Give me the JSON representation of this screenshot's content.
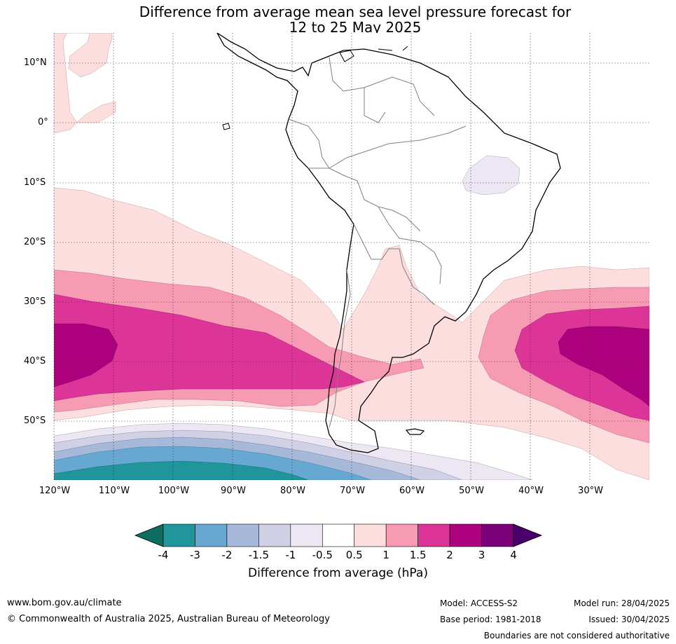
{
  "title": {
    "line1": "Difference from average mean sea level pressure forecast for",
    "line2": "12 to 25 May 2025"
  },
  "map": {
    "lat_labels": [
      "10°N",
      "0°",
      "10°S",
      "20°S",
      "30°S",
      "40°S",
      "50°S"
    ],
    "lon_labels": [
      "120°W",
      "110°W",
      "100°W",
      "90°W",
      "80°W",
      "70°W",
      "60°W",
      "50°W",
      "40°W",
      "30°W"
    ],
    "colors": {
      "land_outline": "#000000",
      "borders": "#808080",
      "grid": "#333333"
    }
  },
  "colorbar": {
    "label": "Difference from average (hPa)",
    "ticks": [
      "-4",
      "-3",
      "-2",
      "-1.5",
      "-1",
      "-0.5",
      "0.5",
      "1",
      "1.5",
      "2",
      "3",
      "4"
    ],
    "colors": [
      "#0b6e5f",
      "#21959c",
      "#66a8d1",
      "#a7b9d8",
      "#d0d1e6",
      "#ece7f2",
      "#ffffff",
      "#fddede",
      "#f79bb5",
      "#dd3497",
      "#ae017e",
      "#7a0177",
      "#49006a"
    ]
  },
  "footer": {
    "website": "www.bom.gov.au/climate",
    "copyright": "© Commonwealth of Australia 2025, Australian Bureau of Meteorology",
    "model": "Model: ACCESS-S2",
    "base_period": "Base period: 1981-2018",
    "model_run": "Model run: 28/04/2025",
    "issued": "Issued: 30/04/2025",
    "disclaimer": "Boundaries are not considered authoritative"
  }
}
